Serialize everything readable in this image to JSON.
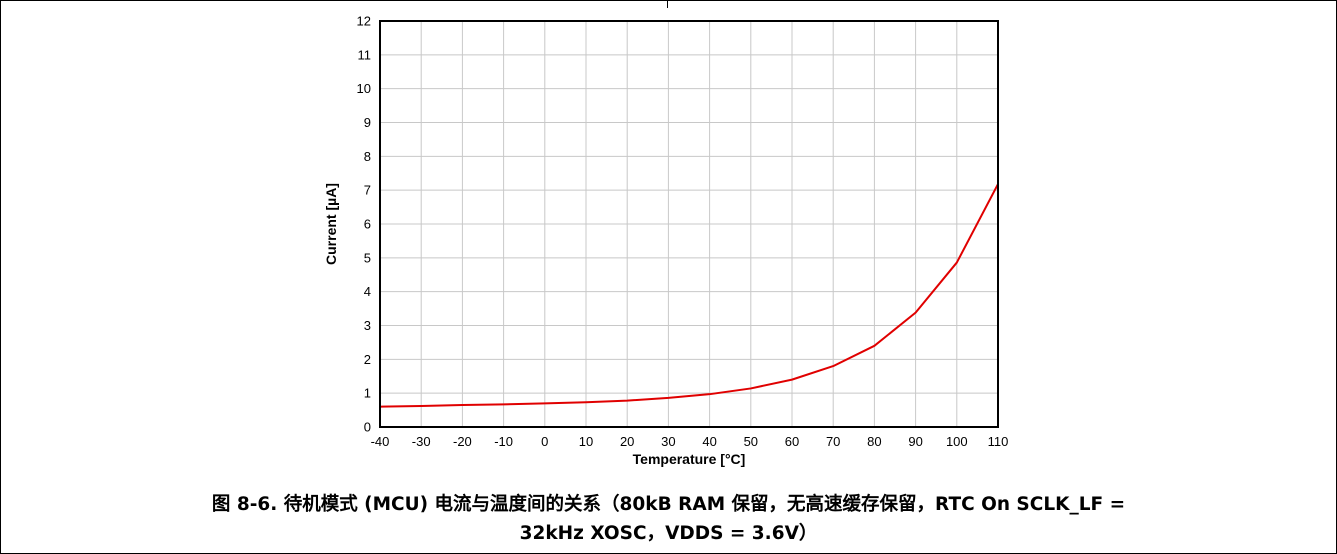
{
  "chart_data": {
    "type": "line",
    "xlabel": "Temperature [°C]",
    "ylabel": "Current [µA]",
    "xlim": [
      -40,
      110
    ],
    "ylim": [
      0,
      12
    ],
    "x_ticks": [
      -40,
      -30,
      -20,
      -10,
      0,
      10,
      20,
      30,
      40,
      50,
      60,
      70,
      80,
      90,
      100,
      110
    ],
    "y_ticks": [
      0,
      1,
      2,
      3,
      4,
      5,
      6,
      7,
      8,
      9,
      10,
      11,
      12
    ],
    "grid": true,
    "series": [
      {
        "color": "#e00000",
        "x": [
          -40,
          -30,
          -20,
          -10,
          0,
          10,
          20,
          30,
          40,
          50,
          60,
          70,
          80,
          90,
          100,
          110
        ],
        "y": [
          0.6,
          0.62,
          0.65,
          0.67,
          0.7,
          0.73,
          0.78,
          0.86,
          0.97,
          1.14,
          1.4,
          1.8,
          2.4,
          3.38,
          4.86,
          7.18
        ]
      }
    ]
  },
  "caption": {
    "line1": "图 8-6. 待机模式 (MCU) 电流与温度间的关系（80kB RAM 保留，无高速缓存保留，RTC On SCLK_LF =",
    "line2": "32kHz XOSC，VDDS = 3.6V）"
  }
}
